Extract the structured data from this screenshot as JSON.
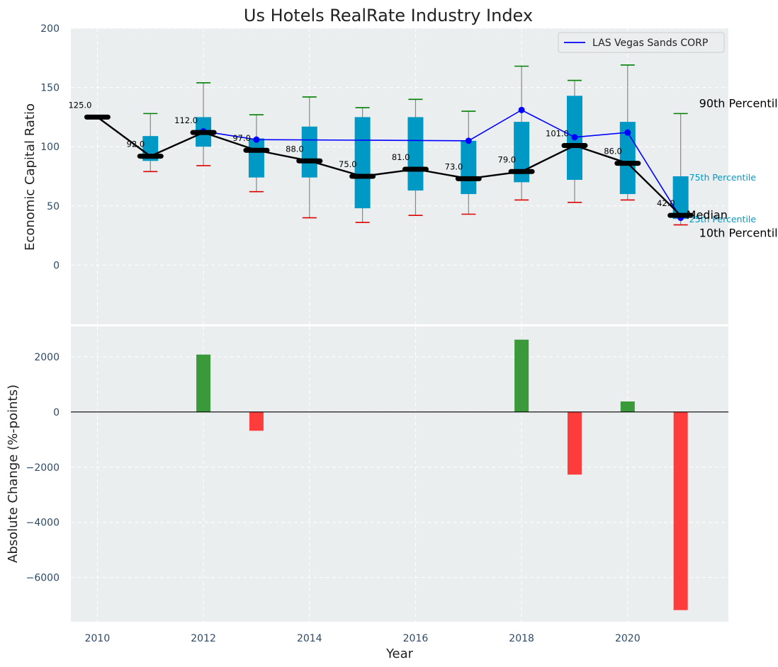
{
  "chart_data": {
    "type": "box",
    "title": "Us Hotels RealRate Industry Index",
    "top_panel": {
      "ylabel": "Economic Capital Ratio",
      "ylim": [
        -50,
        200
      ],
      "yticks": [
        0,
        50,
        100,
        150,
        200
      ],
      "xlim": [
        2009.5,
        2021.9
      ],
      "grid": true,
      "boxes": [
        {
          "year": 2011,
          "p10": 79,
          "q_low": 88,
          "q_high": 109,
          "p90": 128
        },
        {
          "year": 2012,
          "p10": 84,
          "q_low": 100,
          "q_high": 125,
          "p90": 154
        },
        {
          "year": 2013,
          "p10": 62,
          "q_low": 74,
          "q_high": 107,
          "p90": 127
        },
        {
          "year": 2014,
          "p10": 40,
          "q_low": 74,
          "q_high": 117,
          "p90": 142
        },
        {
          "year": 2015,
          "p10": 36,
          "q_low": 48,
          "q_high": 125,
          "p90": 133
        },
        {
          "year": 2016,
          "p10": 42,
          "q_low": 63,
          "q_high": 125,
          "p90": 140
        },
        {
          "year": 2017,
          "p10": 43,
          "q_low": 60,
          "q_high": 105,
          "p90": 130
        },
        {
          "year": 2018,
          "p10": 55,
          "q_low": 70,
          "q_high": 121,
          "p90": 168
        },
        {
          "year": 2019,
          "p10": 53,
          "q_low": 72,
          "q_high": 143,
          "p90": 156
        },
        {
          "year": 2020,
          "p10": 55,
          "q_low": 60,
          "q_high": 121,
          "p90": 169
        },
        {
          "year": 2021,
          "p10": 34,
          "q_low": 39,
          "q_high": 75,
          "p90": 128
        }
      ],
      "median": {
        "years": [
          2010,
          2011,
          2012,
          2013,
          2014,
          2015,
          2016,
          2017,
          2018,
          2019,
          2020,
          2021
        ],
        "values": [
          125,
          92,
          112,
          97,
          88,
          75,
          81,
          73,
          79,
          101,
          86,
          42
        ],
        "labels": [
          "125.0",
          "92.0",
          "112.0",
          "97.0",
          "88.0",
          "75.0",
          "81.0",
          "73.0",
          "79.0",
          "101.0",
          "86.0",
          "42.0"
        ]
      },
      "series": [
        {
          "name": "LAS Vegas Sands CORP",
          "years": [
            2012,
            2013,
            2017,
            2018,
            2019,
            2020,
            2021
          ],
          "values": [
            113,
            106,
            105,
            131,
            108,
            112,
            40
          ],
          "color": "#0000ff"
        }
      ],
      "legend": {
        "position": "top-right",
        "entries": [
          "LAS Vegas Sands CORP"
        ]
      },
      "annotations": {
        "p90": "90th Percentile",
        "median": "Median",
        "p10": "10th Percentile",
        "q_high": "75th Percentile",
        "q_low": "25th Percentile"
      }
    },
    "bottom_panel": {
      "type": "bar",
      "ylabel": "Absolute Change (%-points)",
      "xlabel": "Year",
      "ylim": [
        -7600,
        3100
      ],
      "yticks": [
        2000,
        0,
        -2000,
        -4000,
        -6000
      ],
      "ytick_labels": [
        "2000",
        "0",
        "−2000",
        "−4000",
        "−6000"
      ],
      "xticks": [
        2010,
        2012,
        2014,
        2016,
        2018,
        2020
      ],
      "xtick_labels": [
        "2010",
        "2012",
        "2014",
        "2016",
        "2018",
        "2020"
      ],
      "bars": [
        {
          "year": 2012,
          "value": 2080
        },
        {
          "year": 2013,
          "value": -680
        },
        {
          "year": 2018,
          "value": 2620
        },
        {
          "year": 2019,
          "value": -2270
        },
        {
          "year": 2020,
          "value": 380
        },
        {
          "year": 2021,
          "value": -7180
        }
      ],
      "positive_color": "#3a9a3a",
      "negative_color": "#ff3c3c"
    },
    "colors": {
      "panel_bg": "#eaeeef",
      "box_fill": "#0099c6",
      "whisker_high": "#008000",
      "whisker_low": "#e00000",
      "median_line": "#000000",
      "tick_text": "#2e4a66"
    }
  }
}
